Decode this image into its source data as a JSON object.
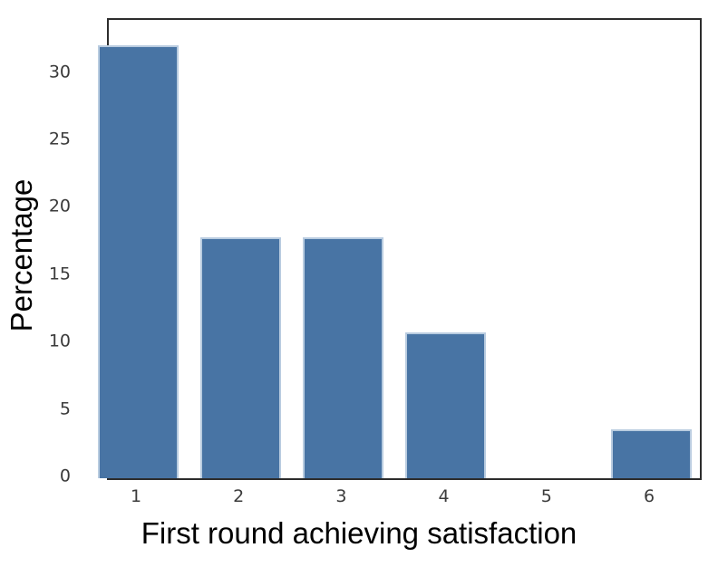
{
  "chart_data": {
    "type": "bar",
    "title": "",
    "xlabel": "First round achieving satisfaction",
    "ylabel": "Percentage",
    "categories": [
      "1",
      "2",
      "3",
      "4",
      "5",
      "6"
    ],
    "values": [
      32.1,
      17.9,
      17.9,
      10.8,
      0.0,
      3.6
    ],
    "yticks": [
      0,
      5,
      10,
      15,
      20,
      25,
      30
    ],
    "ylim": [
      0,
      34
    ],
    "grid": false,
    "legend": null,
    "bar_color": "#4874a4",
    "bar_edge_color": "#b9cce0",
    "spine_color": "#2d2d2d",
    "tick_label_color": "#3b3b3b",
    "axis_label_color": "#000000",
    "background_color": "#ffffff"
  }
}
